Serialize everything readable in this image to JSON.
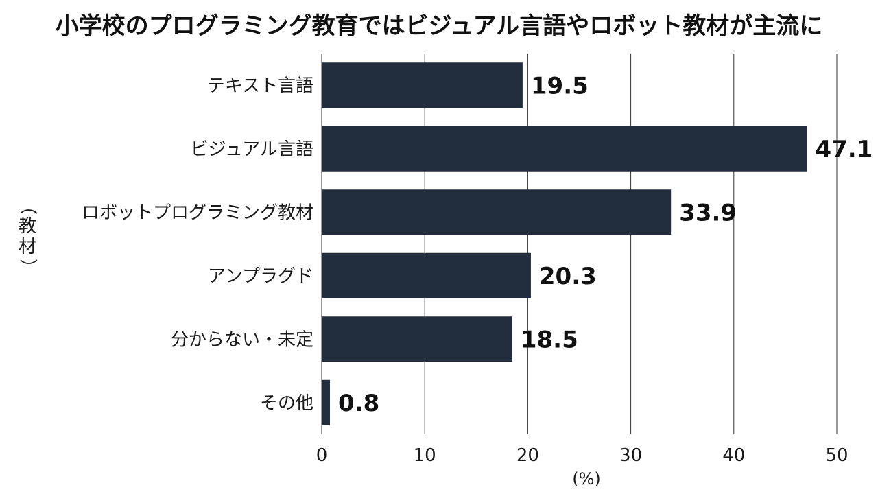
{
  "chart_data": {
    "type": "bar",
    "orientation": "horizontal",
    "title": "小学校のプログラミング教育ではビジュアル言語やロボット教材が主流に",
    "categories": [
      "テキスト言語",
      "ビジュアル言語",
      "ロボットプログラミング教材",
      "アンプラグド",
      "分からない・未定",
      "その他"
    ],
    "values": [
      19.5,
      47.1,
      33.9,
      20.3,
      18.5,
      0.8
    ],
    "value_labels": [
      "19.5",
      "47.1",
      "33.9",
      "20.3",
      "18.5",
      "0.8"
    ],
    "xlabel": "(%)",
    "ylabel": "（教材）",
    "xlim": [
      0,
      50
    ],
    "xticks": [
      "0",
      "10",
      "20",
      "30",
      "40",
      "50"
    ],
    "grid": true,
    "colors": {
      "bar": "#222d3d",
      "grid": "#333333",
      "text": "#1a1a1a"
    }
  }
}
